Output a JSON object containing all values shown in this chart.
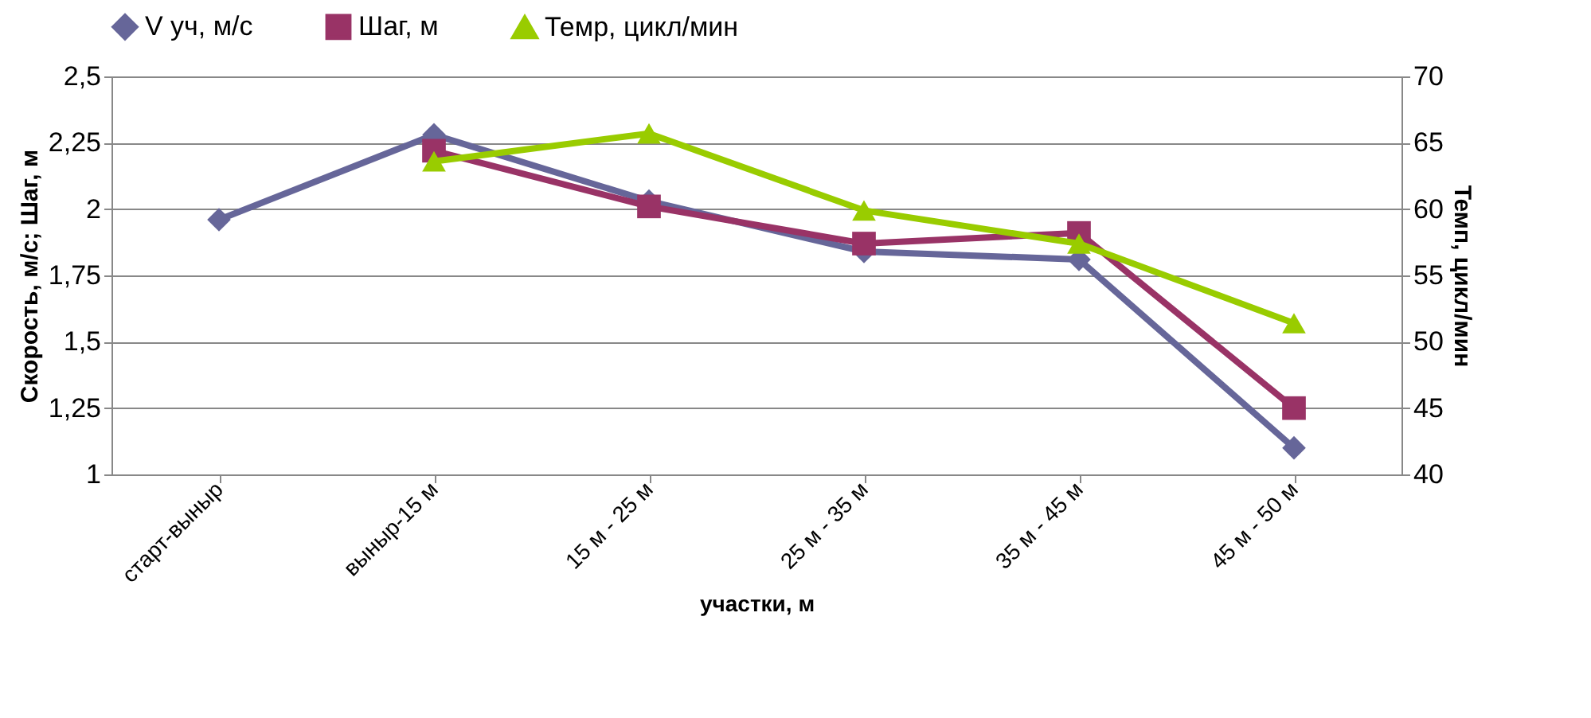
{
  "chart_data": {
    "type": "line",
    "xlabel": "участки, м",
    "ylabel": "Скорость, м/с; Шаг, м",
    "y2label": "Темп, цикл/мин",
    "categories": [
      "старт-выныр",
      "выныр-15 м",
      "15 м - 25 м",
      "25 м - 35 м",
      "35 м - 45 м",
      "45 м - 50  м"
    ],
    "series": [
      {
        "name": "V уч, м/с",
        "color": "#666699",
        "marker": "diamond",
        "values": [
          1.96,
          2.28,
          2.03,
          1.84,
          1.81,
          1.1
        ]
      },
      {
        "name": "Шаг, м",
        "color": "#993366",
        "marker": "square",
        "values": [
          null,
          2.22,
          2.01,
          1.87,
          1.91,
          1.25
        ]
      },
      {
        "name": "Темр, цикл/мин",
        "color": "#99cc00",
        "marker": "triangle",
        "axis": "y2",
        "values": [
          null,
          63.6,
          65.7,
          59.9,
          57.4,
          51.4
        ]
      }
    ],
    "ylim": [
      1,
      2.5
    ],
    "yticks": [
      1,
      {
        "value": 1.25,
        "label": "1,25"
      },
      {
        "value": 1.5,
        "label": "1,5"
      },
      {
        "value": 1.75,
        "label": "1,75"
      },
      2,
      {
        "value": 2.25,
        "label": "2,25"
      },
      {
        "value": 2.5,
        "label": "2,5"
      }
    ],
    "y2lim": [
      40,
      70
    ],
    "y2ticks": [
      40,
      45,
      50,
      55,
      60,
      65,
      70
    ],
    "grid": "y",
    "legend": "top",
    "line_style": "solid"
  }
}
